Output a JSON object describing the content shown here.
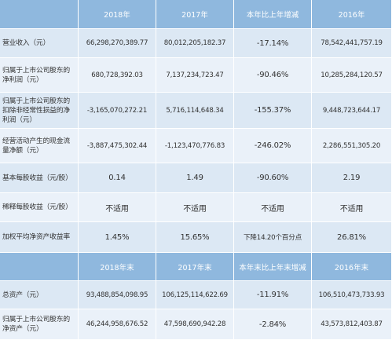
{
  "header1": {
    "blank": "",
    "c2018": "2018年",
    "c2017": "2017年",
    "change": "本年比上年增减",
    "c2016": "2016年"
  },
  "rows1": [
    {
      "label": "营业收入（元）",
      "v2018": "66,298,270,389.77",
      "v2017": "80,012,205,182.37",
      "change": "-17.14%",
      "v2016": "78,542,441,757.19"
    },
    {
      "label": "归属于上市公司股东的净利润（元）",
      "v2018": "680,728,392.03",
      "v2017": "7,137,234,723.47",
      "change": "-90.46%",
      "v2016": "10,285,284,120.57"
    },
    {
      "label": "归属于上市公司股东的扣除非经常性损益的净利润（元）",
      "v2018": "-3,165,070,272.21",
      "v2017": "5,716,114,648.34",
      "change": "-155.37%",
      "v2016": "9,448,723,644.17"
    },
    {
      "label": "经营活动产生的现金流量净额（元）",
      "v2018": "-3,887,475,302.44",
      "v2017": "-1,123,470,776.83",
      "change": "-246.02%",
      "v2016": "2,286,551,305.20"
    },
    {
      "label": "基本每股收益（元/股）",
      "v2018": "0.14",
      "v2017": "1.49",
      "change": "-90.60%",
      "v2016": "2.19"
    },
    {
      "label": "稀释每股收益（元/股）",
      "v2018": "不适用",
      "v2017": "不适用",
      "change": "不适用",
      "v2016": "不适用"
    },
    {
      "label": "加权平均净资产收益率",
      "v2018": "1.45%",
      "v2017": "15.65%",
      "change": "下降14.20个百分点",
      "v2016": "26.81%"
    }
  ],
  "header2": {
    "blank": "",
    "c2018": "2018年末",
    "c2017": "2017年末",
    "change": "本年末比上年末增减",
    "c2016": "2016年末"
  },
  "rows2": [
    {
      "label": "总资产（元）",
      "v2018": "93,488,854,098.95",
      "v2017": "106,125,114,622.69",
      "change": "-11.91%",
      "v2016": "106,510,473,733.93"
    },
    {
      "label": "归属于上市公司股东的净资产（元）",
      "v2018": "46,244,958,676.52",
      "v2017": "47,598,690,942.28",
      "change": "-2.84%",
      "v2016": "43,573,812,403.87"
    }
  ]
}
